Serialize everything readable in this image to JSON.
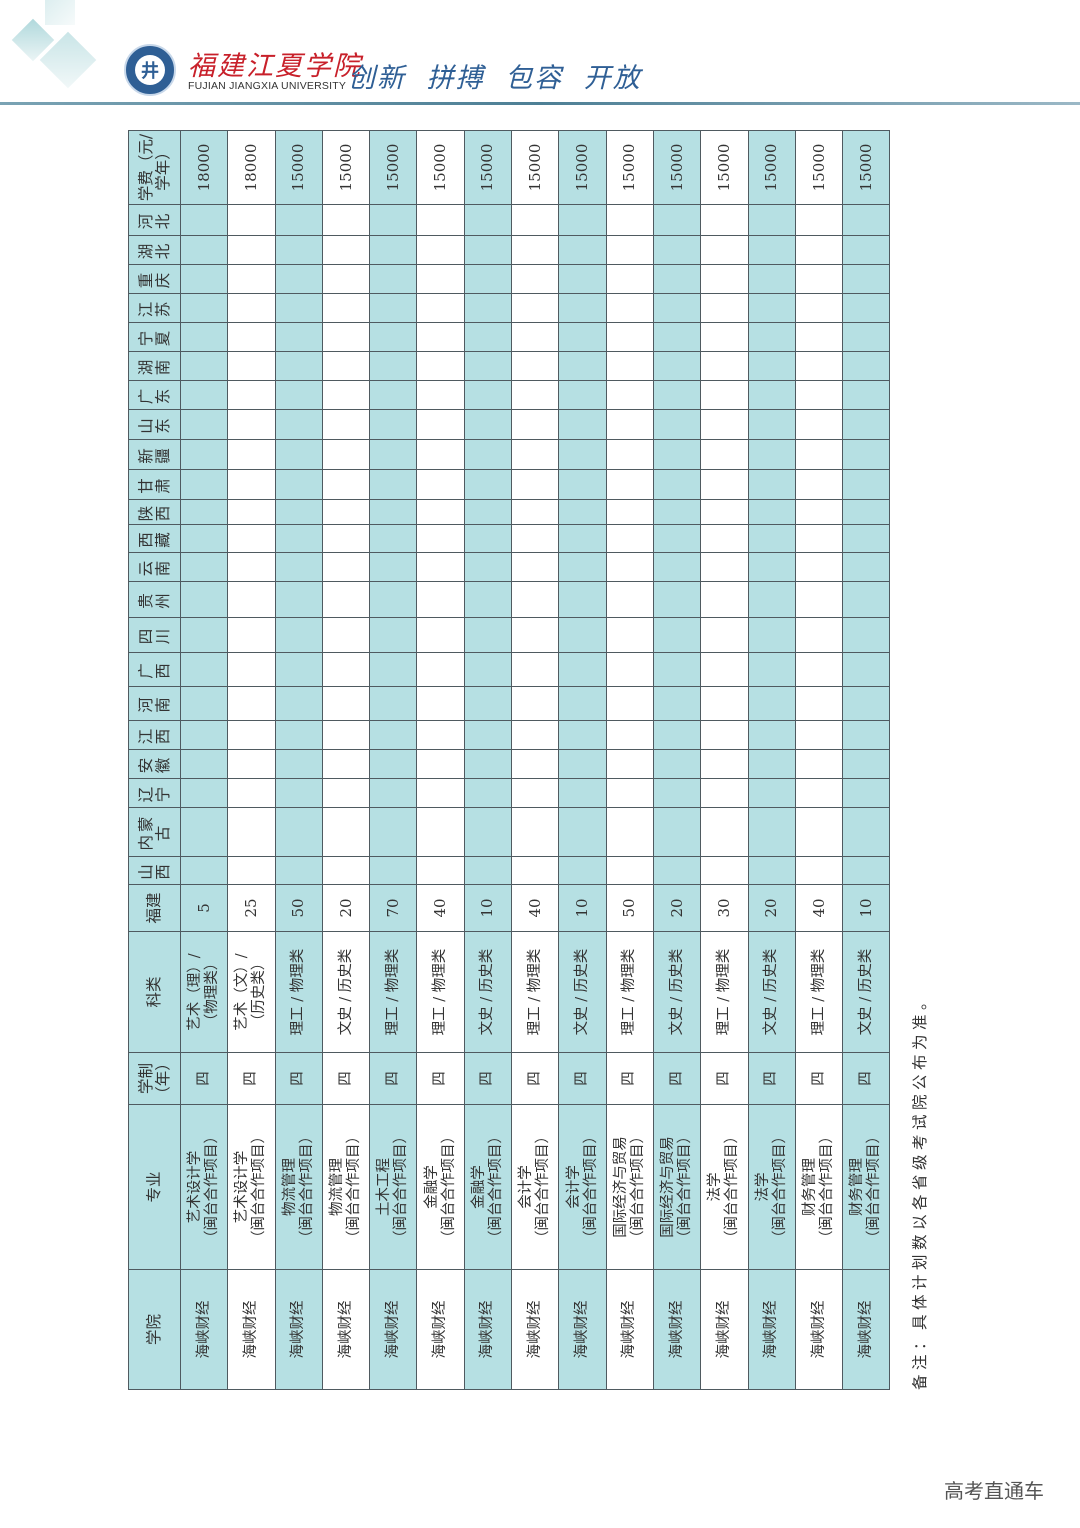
{
  "header": {
    "school_cn": "福建江夏学院",
    "school_en": "FUJIAN JIANGXIA UNIVERSITY",
    "motto": "创新 拼搏 包容 开放",
    "logo_icon": "university-seal-icon"
  },
  "colors": {
    "row_teal": "#b6e0e3",
    "brand_red": "#c8202a",
    "brand_blue": "#2f5f95"
  },
  "table": {
    "columns": [
      "学院",
      "专业",
      "学制（年）",
      "科类",
      "福建",
      "山西",
      "内蒙古",
      "辽宁",
      "安徽",
      "江西",
      "河南",
      "广西",
      "四川",
      "贵州",
      "云南",
      "西藏",
      "陕西",
      "甘肃",
      "新疆",
      "山东",
      "广东",
      "湖南",
      "宁夏",
      "江苏",
      "重庆",
      "湖北",
      "河北",
      "学费（元/学年）"
    ],
    "rows": [
      {
        "college": "海峡财经",
        "major": [
          "艺术设计学",
          "（闽台合作项目）"
        ],
        "years": "四",
        "category": [
          "艺术（理）/",
          "（物理类）"
        ],
        "fujian": "5",
        "fee": "18000"
      },
      {
        "college": "海峡财经",
        "major": [
          "艺术设计学",
          "（闽台合作项目）"
        ],
        "years": "四",
        "category": [
          "艺术（文）/",
          "（历史类）"
        ],
        "fujian": "25",
        "fee": "18000"
      },
      {
        "college": "海峡财经",
        "major": [
          "物流管理",
          "（闽台合作项目）"
        ],
        "years": "四",
        "category": [
          "理工 / 物理类"
        ],
        "fujian": "50",
        "fee": "15000"
      },
      {
        "college": "海峡财经",
        "major": [
          "物流管理",
          "（闽台合作项目）"
        ],
        "years": "四",
        "category": [
          "文史 / 历史类"
        ],
        "fujian": "20",
        "fee": "15000"
      },
      {
        "college": "海峡财经",
        "major": [
          "土木工程",
          "（闽台合作项目）"
        ],
        "years": "四",
        "category": [
          "理工 / 物理类"
        ],
        "fujian": "70",
        "fee": "15000"
      },
      {
        "college": "海峡财经",
        "major": [
          "金融学",
          "（闽台合作项目）"
        ],
        "years": "四",
        "category": [
          "理工 / 物理类"
        ],
        "fujian": "40",
        "fee": "15000"
      },
      {
        "college": "海峡财经",
        "major": [
          "金融学",
          "（闽台合作项目）"
        ],
        "years": "四",
        "category": [
          "文史 / 历史类"
        ],
        "fujian": "10",
        "fee": "15000"
      },
      {
        "college": "海峡财经",
        "major": [
          "会计学",
          "（闽台合作项目）"
        ],
        "years": "四",
        "category": [
          "理工 / 物理类"
        ],
        "fujian": "40",
        "fee": "15000"
      },
      {
        "college": "海峡财经",
        "major": [
          "会计学",
          "（闽台合作项目）"
        ],
        "years": "四",
        "category": [
          "文史 / 历史类"
        ],
        "fujian": "10",
        "fee": "15000"
      },
      {
        "college": "海峡财经",
        "major": [
          "国际经济与贸易",
          "（闽台合作项目）"
        ],
        "years": "四",
        "category": [
          "理工 / 物理类"
        ],
        "fujian": "50",
        "fee": "15000"
      },
      {
        "college": "海峡财经",
        "major": [
          "国际经济与贸易",
          "（闽台合作项目）"
        ],
        "years": "四",
        "category": [
          "文史 / 历史类"
        ],
        "fujian": "20",
        "fee": "15000"
      },
      {
        "college": "海峡财经",
        "major": [
          "法学",
          "（闽台合作项目）"
        ],
        "years": "四",
        "category": [
          "理工 / 物理类"
        ],
        "fujian": "30",
        "fee": "15000"
      },
      {
        "college": "海峡财经",
        "major": [
          "法学",
          "（闽台合作项目）"
        ],
        "years": "四",
        "category": [
          "文史 / 历史类"
        ],
        "fujian": "20",
        "fee": "15000"
      },
      {
        "college": "海峡财经",
        "major": [
          "财务管理",
          "（闽台合作项目）"
        ],
        "years": "四",
        "category": [
          "理工 / 物理类"
        ],
        "fujian": "40",
        "fee": "15000"
      },
      {
        "college": "海峡财经",
        "major": [
          "财务管理",
          "（闽台合作项目）"
        ],
        "years": "四",
        "category": [
          "文史 / 历史类"
        ],
        "fujian": "10",
        "fee": "15000"
      }
    ],
    "note": "备注：具体计划数以各省级考试院公布为准。"
  },
  "watermark": "高考直通车"
}
